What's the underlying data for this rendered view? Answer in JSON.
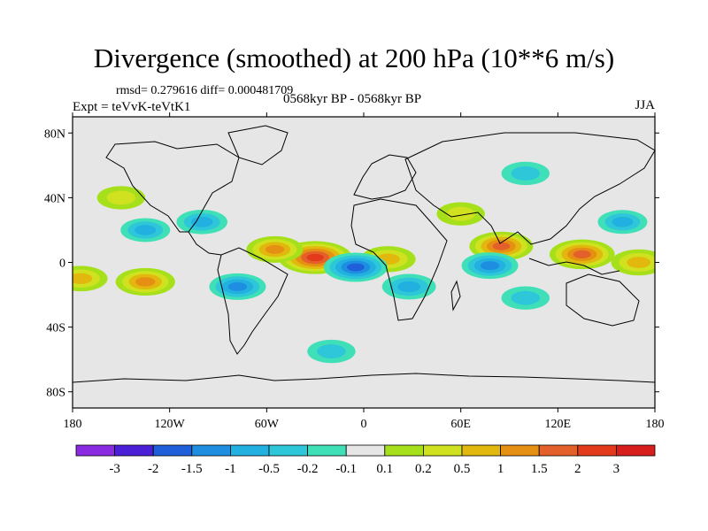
{
  "title": "Divergence (smoothed) at 200 hPa (10**6 m/s)",
  "stats": "rmsd= 0.279616 diff= 0.000481709",
  "experiment": "Expt = teVvK-teVtK1",
  "period": "0568kyr BP - 0568kyr BP",
  "season": "JJA",
  "axes": {
    "lat_ticks": [
      "80N",
      "40N",
      "0",
      "40S",
      "80S"
    ],
    "lat_values": [
      80,
      40,
      0,
      -40,
      -80
    ],
    "lon_ticks": [
      "180",
      "120W",
      "60W",
      "0",
      "60E",
      "120E",
      "180"
    ],
    "lon_values": [
      -180,
      -120,
      -60,
      0,
      60,
      120,
      180
    ]
  },
  "colorbar": {
    "labels": [
      "-3",
      "-2",
      "-1.5",
      "-1",
      "-0.5",
      "-0.2",
      "-0.1",
      "0.1",
      "0.2",
      "0.5",
      "1",
      "1.5",
      "2",
      "3"
    ],
    "colors": [
      "#8a2be2",
      "#4b1fd6",
      "#1f5fd9",
      "#1e8fe0",
      "#21b0df",
      "#2ec7d9",
      "#3fe0b8",
      "#e6e6e6",
      "#a6e01a",
      "#cfe11f",
      "#e2b80e",
      "#e58f13",
      "#e4602a",
      "#e23a1a",
      "#d81d1d"
    ]
  },
  "chart_data": {
    "type": "heatmap",
    "title": "Divergence (smoothed) at 200 hPa (10**6 m/s)",
    "xlabel": "",
    "ylabel": "",
    "xlim": [
      -180,
      180
    ],
    "ylim": [
      -90,
      90
    ],
    "levels": [
      -3,
      -2,
      -1.5,
      -1,
      -0.5,
      -0.2,
      -0.1,
      0.1,
      0.2,
      0.5,
      1,
      1.5,
      2,
      3
    ],
    "anomalies": [
      {
        "lon": -30,
        "lat": 3,
        "value": 2.2
      },
      {
        "lon": -55,
        "lat": 8,
        "value": 1.0
      },
      {
        "lon": 135,
        "lat": 5,
        "value": 1.6
      },
      {
        "lon": 85,
        "lat": 10,
        "value": 1.5
      },
      {
        "lon": -135,
        "lat": -12,
        "value": 1.2
      },
      {
        "lon": -175,
        "lat": -10,
        "value": 0.8
      },
      {
        "lon": 15,
        "lat": 2,
        "value": 0.9
      },
      {
        "lon": 170,
        "lat": 0,
        "value": 0.9
      },
      {
        "lon": -5,
        "lat": -3,
        "value": -1.5
      },
      {
        "lon": -78,
        "lat": -15,
        "value": -1.0
      },
      {
        "lon": 78,
        "lat": -2,
        "value": -1.0
      },
      {
        "lon": 28,
        "lat": -15,
        "value": -0.8
      },
      {
        "lon": -100,
        "lat": 25,
        "value": -0.6
      },
      {
        "lon": 160,
        "lat": 25,
        "value": -0.5
      },
      {
        "lon": -135,
        "lat": 20,
        "value": -0.5
      },
      {
        "lon": 100,
        "lat": -22,
        "value": -0.4
      },
      {
        "lon": 60,
        "lat": 30,
        "value": 0.4
      },
      {
        "lon": -150,
        "lat": 40,
        "value": 0.4
      },
      {
        "lon": 100,
        "lat": 55,
        "value": -0.4
      },
      {
        "lon": -20,
        "lat": -55,
        "value": -0.4
      }
    ]
  }
}
